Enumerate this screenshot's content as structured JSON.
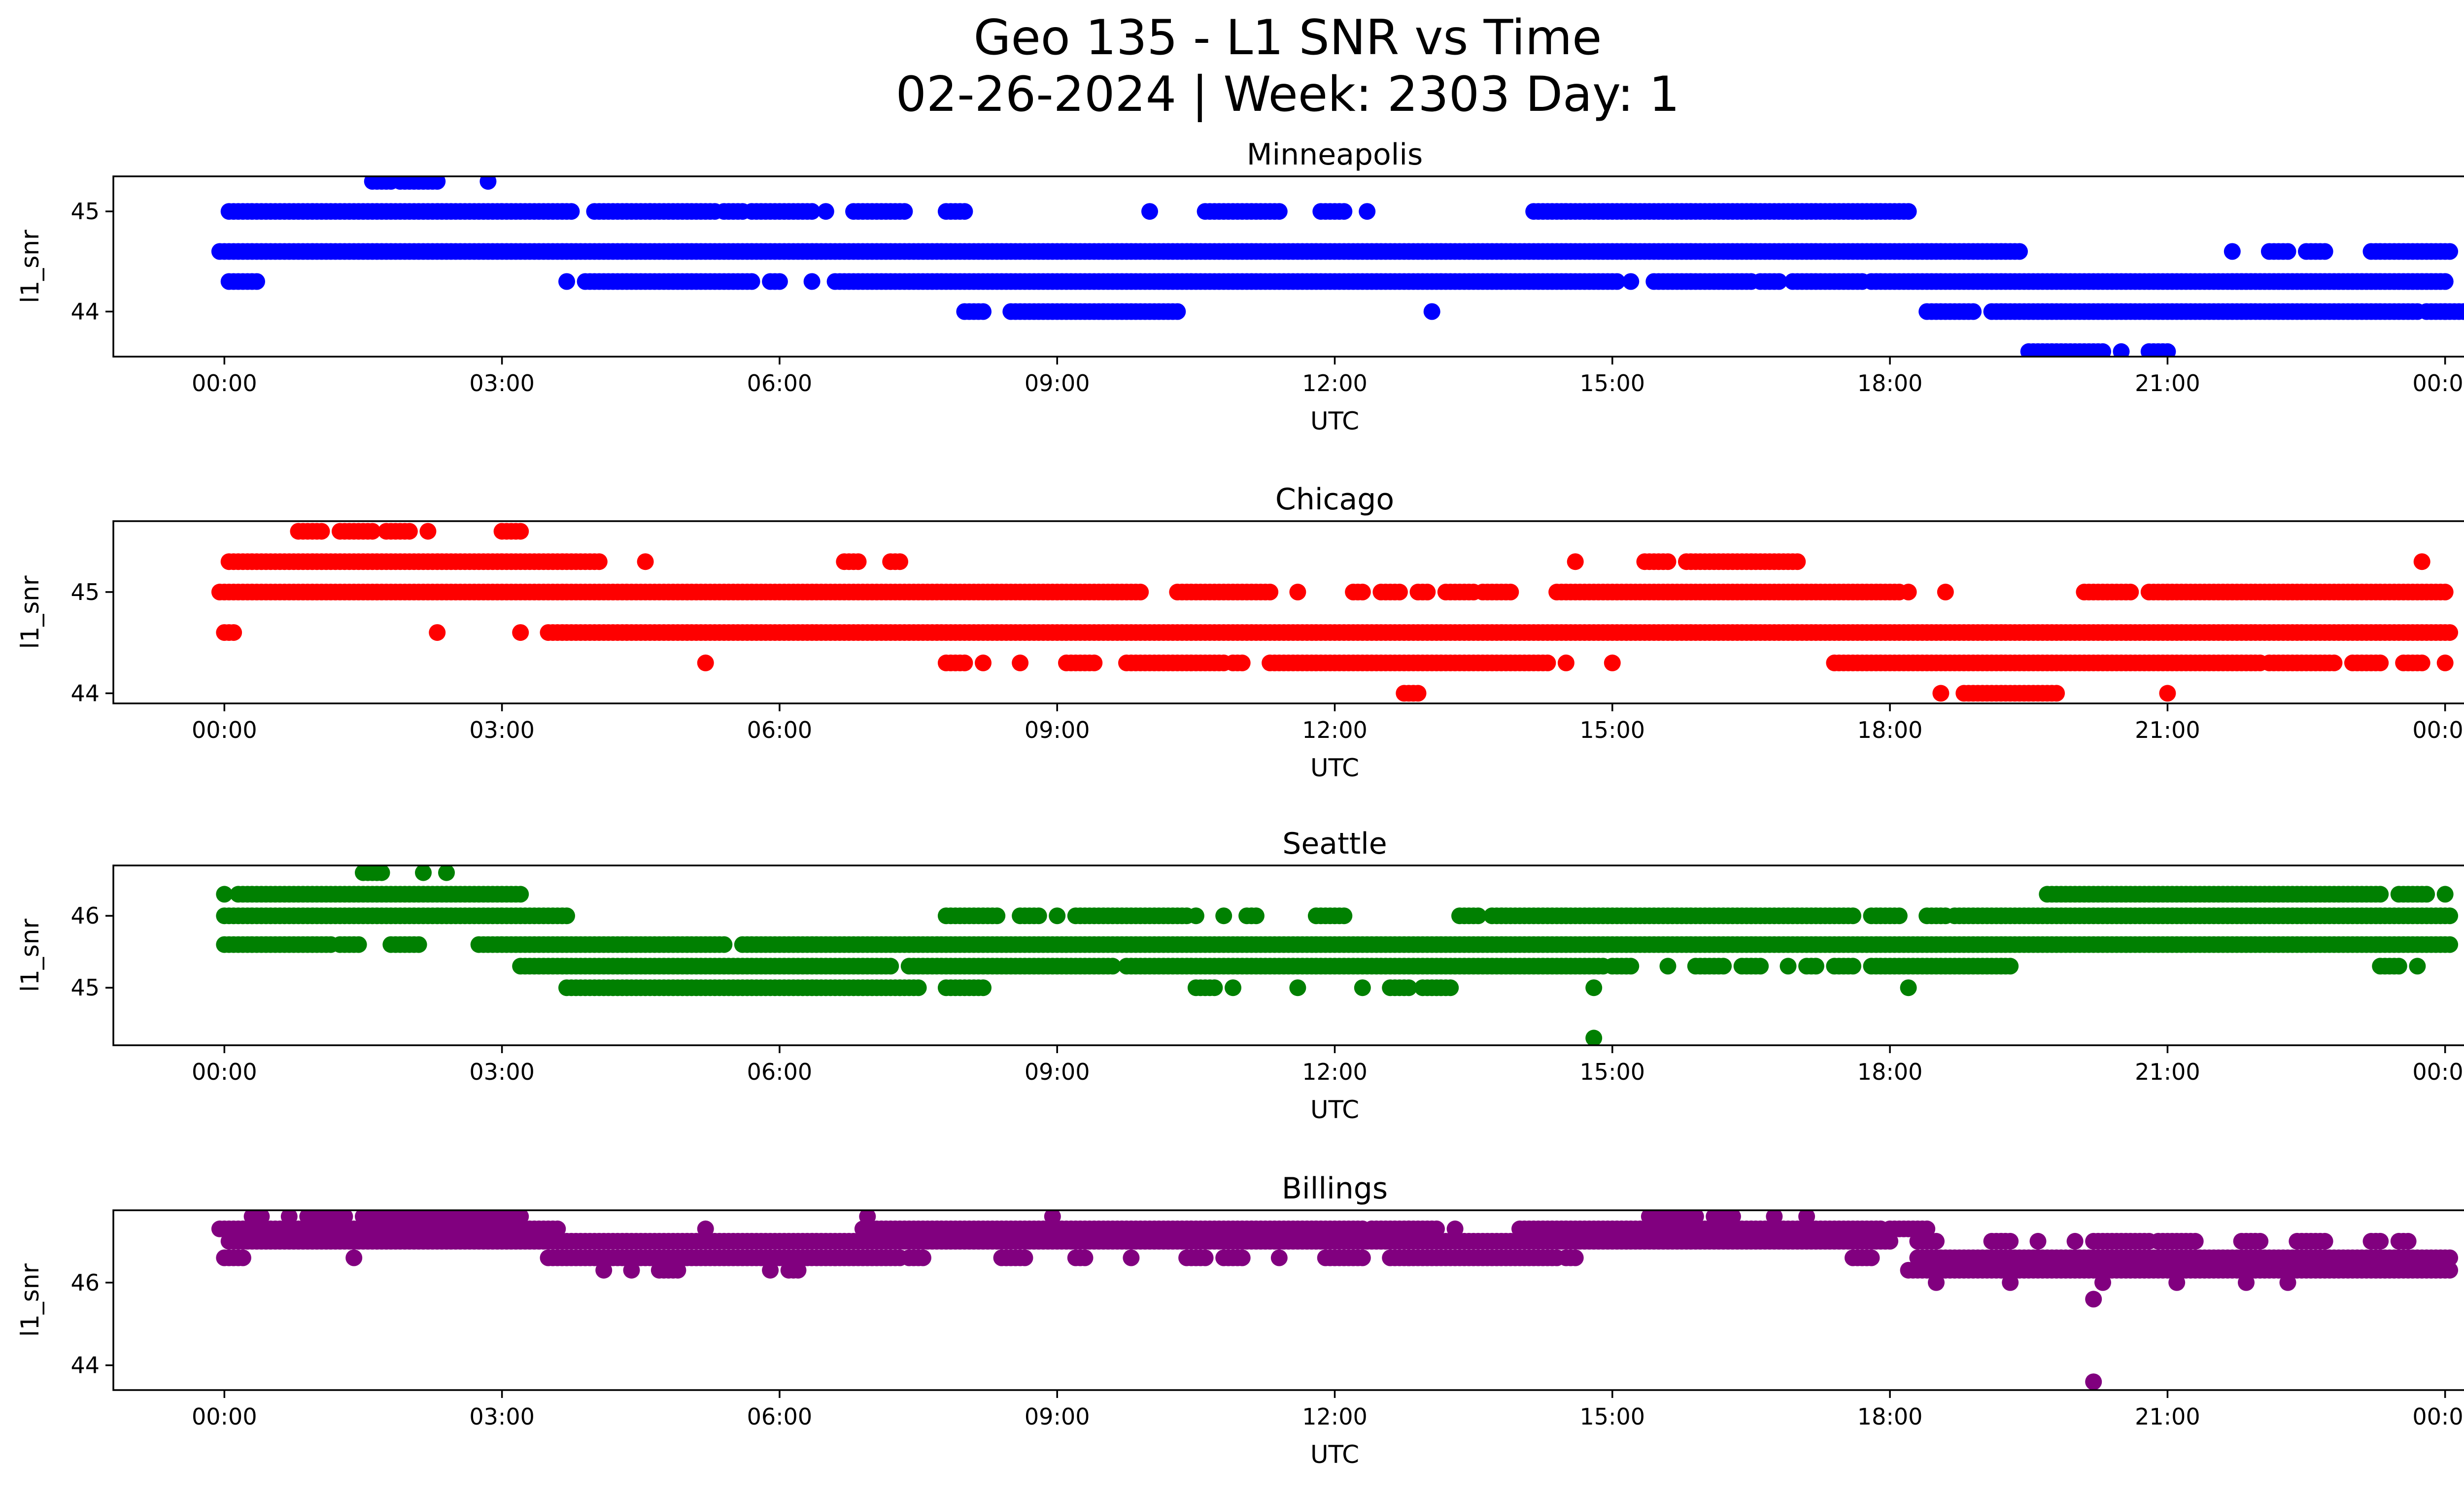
{
  "title_line1": "Geo 135 - L1 SNR vs Time",
  "title_line2": "02-26-2024 | Week: 2303 Day: 1",
  "chart_data": [
    {
      "type": "scatter",
      "title": "Minneapolis",
      "xlabel": "UTC",
      "ylabel": "l1_snr",
      "color": "#0000ff",
      "x_ticks": [
        "00:00",
        "03:00",
        "06:00",
        "09:00",
        "12:00",
        "15:00",
        "18:00",
        "21:00",
        "00:00"
      ],
      "xlim_hours": [
        -1.2,
        25.2
      ],
      "y_ticks": [
        44,
        45
      ],
      "ylim": [
        43.55,
        45.35
      ],
      "series": [
        {
          "y": 45.3,
          "segments": [
            [
              1.6,
              1.8
            ],
            [
              1.9,
              2.3
            ],
            [
              2.85,
              2.85
            ]
          ]
        },
        {
          "y": 45.0,
          "segments": [
            [
              0.05,
              3.75
            ],
            [
              4.0,
              4.6
            ],
            [
              4.6,
              5.3
            ],
            [
              5.4,
              5.6
            ],
            [
              5.7,
              6.35
            ],
            [
              6.5,
              6.5
            ],
            [
              6.8,
              7.35
            ],
            [
              7.8,
              8.0
            ],
            [
              10.0,
              10.0
            ],
            [
              10.6,
              11.05
            ],
            [
              11.1,
              11.4
            ],
            [
              11.85,
              12.1
            ],
            [
              12.35,
              12.35
            ],
            [
              14.15,
              17.85
            ],
            [
              17.9,
              18.2
            ]
          ]
        },
        {
          "y": 44.6,
          "segments": [
            [
              -0.05,
              19.4
            ]
          ]
        },
        {
          "y": 44.3,
          "segments": [
            [
              0.05,
              0.35
            ],
            [
              3.7,
              3.7
            ],
            [
              3.9,
              5.7
            ],
            [
              5.9,
              6.0
            ],
            [
              6.35,
              6.35
            ],
            [
              6.6,
              14.7
            ],
            [
              14.75,
              15.05
            ],
            [
              15.2,
              15.2
            ],
            [
              15.45,
              16.5
            ],
            [
              16.6,
              16.8
            ],
            [
              16.95,
              17.7
            ],
            [
              17.8,
              24.0
            ]
          ]
        },
        {
          "y": 44.3,
          "segments": [
            [
              21.7,
              24.0
            ]
          ]
        },
        {
          "y": 44.0,
          "segments": [
            [
              8.0,
              8.2
            ],
            [
              8.5,
              9.5
            ],
            [
              9.5,
              10.3
            ],
            [
              13.05,
              13.05
            ],
            [
              18.4,
              18.9
            ],
            [
              19.1,
              23.7
            ],
            [
              23.8,
              24.3
            ],
            [
              24.0,
              24.0
            ]
          ]
        },
        {
          "y": 44.6,
          "segments": [
            [
              21.7,
              21.7
            ],
            [
              22.1,
              22.3
            ],
            [
              22.5,
              22.7
            ],
            [
              23.2,
              24.05
            ]
          ]
        },
        {
          "y": 43.6,
          "segments": [
            [
              19.5,
              20.3
            ],
            [
              20.5,
              20.5
            ],
            [
              20.8,
              21.0
            ]
          ]
        }
      ]
    },
    {
      "type": "scatter",
      "title": "Chicago",
      "xlabel": "UTC",
      "ylabel": "l1_snr",
      "color": "#ff0000",
      "x_ticks": [
        "00:00",
        "03:00",
        "06:00",
        "09:00",
        "12:00",
        "15:00",
        "18:00",
        "21:00",
        "00:00"
      ],
      "xlim_hours": [
        -1.2,
        25.2
      ],
      "y_ticks": [
        44,
        45
      ],
      "ylim": [
        43.9,
        45.7
      ],
      "series": [
        {
          "y": 45.6,
          "segments": [
            [
              0.8,
              1.05
            ],
            [
              1.25,
              1.6
            ],
            [
              1.75,
              2.0
            ],
            [
              2.2,
              2.2
            ],
            [
              3.0,
              3.2
            ]
          ]
        },
        {
          "y": 45.3,
          "segments": [
            [
              0.05,
              4.05
            ],
            [
              4.55,
              4.55
            ],
            [
              6.7,
              6.85
            ],
            [
              7.2,
              7.3
            ],
            [
              14.6,
              14.6
            ],
            [
              15.35,
              15.6
            ],
            [
              15.8,
              17.0
            ],
            [
              23.75,
              23.75
            ]
          ]
        },
        {
          "y": 45.0,
          "segments": [
            [
              -0.05,
              9.9
            ],
            [
              10.3,
              11.3
            ],
            [
              11.6,
              11.6
            ],
            [
              12.2,
              12.3
            ],
            [
              12.5,
              12.7
            ],
            [
              12.9,
              13.0
            ],
            [
              13.2,
              13.5
            ],
            [
              13.6,
              13.9
            ],
            [
              14.4,
              18.1
            ],
            [
              18.2,
              18.2
            ],
            [
              18.6,
              18.6
            ],
            [
              20.8,
              21.0
            ],
            [
              21.0,
              24.0
            ],
            [
              20.1,
              20.6
            ]
          ]
        },
        {
          "y": 44.6,
          "segments": [
            [
              0.0,
              0.1
            ],
            [
              2.3,
              2.3
            ],
            [
              3.2,
              3.2
            ],
            [
              3.5,
              24.05
            ]
          ]
        },
        {
          "y": 44.3,
          "segments": [
            [
              5.2,
              5.2
            ],
            [
              7.8,
              8.0
            ],
            [
              8.2,
              8.2
            ],
            [
              8.6,
              8.6
            ],
            [
              9.1,
              9.4
            ],
            [
              9.75,
              10.8
            ],
            [
              10.9,
              11.0
            ],
            [
              11.3,
              14.3
            ],
            [
              14.5,
              14.5
            ],
            [
              15.0,
              15.0
            ],
            [
              17.4,
              22.0
            ],
            [
              22.1,
              22.8
            ],
            [
              23.0,
              23.3
            ],
            [
              23.55,
              23.75
            ],
            [
              24.0,
              24.0
            ]
          ]
        },
        {
          "y": 44.0,
          "segments": [
            [
              12.75,
              12.9
            ],
            [
              18.55,
              18.55
            ],
            [
              18.8,
              19.8
            ],
            [
              21.0,
              21.0
            ]
          ]
        }
      ]
    },
    {
      "type": "scatter",
      "title": "Seattle",
      "xlabel": "UTC",
      "ylabel": "l1_snr",
      "color": "#008000",
      "x_ticks": [
        "00:00",
        "03:00",
        "06:00",
        "09:00",
        "12:00",
        "15:00",
        "18:00",
        "21:00",
        "00:00"
      ],
      "xlim_hours": [
        -1.2,
        25.2
      ],
      "y_ticks": [
        45,
        46
      ],
      "ylim": [
        44.2,
        46.7
      ],
      "series": [
        {
          "y": 46.6,
          "segments": [
            [
              1.5,
              1.7
            ],
            [
              2.15,
              2.15
            ],
            [
              2.4,
              2.4
            ]
          ]
        },
        {
          "y": 46.3,
          "segments": [
            [
              0.0,
              0.0
            ],
            [
              0.15,
              3.2
            ]
          ]
        },
        {
          "y": 46.0,
          "segments": [
            [
              0.0,
              3.7
            ],
            [
              7.8,
              8.35
            ],
            [
              8.6,
              8.8
            ],
            [
              9.0,
              9.0
            ],
            [
              9.2,
              10.4
            ],
            [
              10.5,
              10.5
            ],
            [
              10.8,
              10.8
            ],
            [
              11.05,
              11.15
            ],
            [
              11.8,
              12.1
            ],
            [
              13.35,
              13.55
            ],
            [
              13.7,
              17.6
            ],
            [
              17.8,
              18.1
            ],
            [
              18.4,
              18.6
            ],
            [
              18.7,
              24.05
            ]
          ]
        },
        {
          "y": 46.3,
          "segments": [
            [
              19.7,
              22.75
            ],
            [
              22.8,
              23.3
            ],
            [
              23.5,
              23.8
            ],
            [
              24.0,
              24.0
            ]
          ]
        },
        {
          "y": 45.6,
          "segments": [
            [
              0.0,
              0.5
            ],
            [
              0.55,
              1.15
            ],
            [
              1.25,
              1.45
            ],
            [
              1.8,
              2.1
            ],
            [
              2.75,
              5.4
            ],
            [
              5.6,
              24.05
            ]
          ]
        },
        {
          "y": 45.3,
          "segments": [
            [
              3.2,
              7.2
            ],
            [
              7.4,
              9.6
            ],
            [
              9.75,
              14.9
            ],
            [
              15.0,
              15.2
            ],
            [
              15.6,
              15.6
            ],
            [
              15.9,
              16.2
            ],
            [
              16.4,
              16.6
            ],
            [
              16.9,
              16.9
            ],
            [
              17.1,
              17.2
            ],
            [
              17.4,
              17.6
            ],
            [
              17.8,
              19.3
            ],
            [
              23.3,
              23.5
            ],
            [
              23.7,
              23.7
            ]
          ]
        },
        {
          "y": 45.0,
          "segments": [
            [
              3.7,
              7.3
            ],
            [
              7.3,
              7.5
            ],
            [
              7.8,
              8.2
            ],
            [
              10.5,
              10.7
            ],
            [
              10.9,
              10.9
            ],
            [
              11.6,
              11.6
            ],
            [
              12.3,
              12.3
            ],
            [
              12.6,
              12.8
            ],
            [
              12.95,
              13.25
            ],
            [
              14.8,
              14.8
            ],
            [
              18.2,
              18.2
            ]
          ]
        },
        {
          "y": 44.3,
          "segments": [
            [
              14.8,
              14.8
            ]
          ]
        }
      ]
    },
    {
      "type": "scatter",
      "title": "Billings",
      "xlabel": "UTC",
      "ylabel": "l1_snr",
      "color": "#800080",
      "x_ticks": [
        "00:00",
        "03:00",
        "06:00",
        "09:00",
        "12:00",
        "15:00",
        "18:00",
        "21:00",
        "00:00"
      ],
      "xlim_hours": [
        -1.2,
        25.2
      ],
      "y_ticks": [
        44,
        46
      ],
      "ylim": [
        43.4,
        47.75
      ],
      "series": [
        {
          "y": 47.6,
          "segments": [
            [
              0.3,
              0.4
            ],
            [
              0.7,
              0.7
            ],
            [
              0.9,
              1.2
            ],
            [
              1.3,
              1.3
            ],
            [
              1.5,
              2.9
            ],
            [
              2.95,
              3.2
            ],
            [
              6.95,
              6.95
            ],
            [
              8.95,
              8.95
            ],
            [
              15.4,
              15.9
            ],
            [
              16.1,
              16.3
            ],
            [
              16.75,
              16.75
            ],
            [
              17.1,
              17.1
            ]
          ]
        },
        {
          "y": 47.3,
          "segments": [
            [
              -0.05,
              3.6
            ],
            [
              5.2,
              5.2
            ],
            [
              6.9,
              12.3
            ],
            [
              12.4,
              12.8
            ],
            [
              12.8,
              13.1
            ],
            [
              13.3,
              13.3
            ],
            [
              14.0,
              17.9
            ],
            [
              18.0,
              18.4
            ]
          ]
        },
        {
          "y": 47.0,
          "segments": [
            [
              0.05,
              3.6
            ],
            [
              3.6,
              18.0
            ],
            [
              18.3,
              18.5
            ],
            [
              19.1,
              19.3
            ],
            [
              19.6,
              19.6
            ],
            [
              20.0,
              20.0
            ],
            [
              20.2,
              20.8
            ],
            [
              20.9,
              21.3
            ],
            [
              21.8,
              22.0
            ],
            [
              22.4,
              22.7
            ],
            [
              23.2,
              23.3
            ],
            [
              23.5,
              23.6
            ]
          ]
        },
        {
          "y": 46.6,
          "segments": [
            [
              0.0,
              0.2
            ],
            [
              1.4,
              1.4
            ],
            [
              3.5,
              5.9
            ],
            [
              5.9,
              6.6
            ],
            [
              6.6,
              7.3
            ],
            [
              7.4,
              7.55
            ],
            [
              8.4,
              8.65
            ],
            [
              9.2,
              9.3
            ],
            [
              9.8,
              9.8
            ],
            [
              10.4,
              10.6
            ],
            [
              10.8,
              11.0
            ],
            [
              11.4,
              11.4
            ],
            [
              11.9,
              12.3
            ],
            [
              12.6,
              12.8
            ],
            [
              12.8,
              14.4
            ],
            [
              14.5,
              14.6
            ],
            [
              17.6,
              17.8
            ],
            [
              18.3,
              24.05
            ]
          ]
        },
        {
          "y": 46.3,
          "segments": [
            [
              4.1,
              4.1
            ],
            [
              4.4,
              4.4
            ],
            [
              4.7,
              4.9
            ],
            [
              5.9,
              5.9
            ],
            [
              6.1,
              6.2
            ],
            [
              18.2,
              24.05
            ]
          ]
        },
        {
          "y": 46.0,
          "segments": [
            [
              18.5,
              18.5
            ],
            [
              19.3,
              19.3
            ],
            [
              20.3,
              20.3
            ],
            [
              21.1,
              21.1
            ],
            [
              21.85,
              21.85
            ],
            [
              22.3,
              22.3
            ]
          ]
        },
        {
          "y": 45.6,
          "segments": [
            [
              20.2,
              20.2
            ]
          ]
        },
        {
          "y": 43.6,
          "segments": [
            [
              20.2,
              20.2
            ]
          ]
        }
      ]
    }
  ]
}
